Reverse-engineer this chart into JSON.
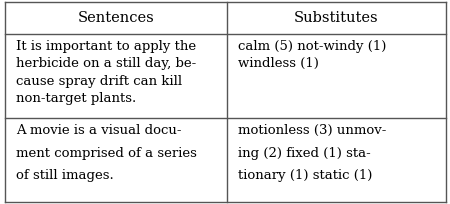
{
  "figsize": [
    4.5,
    2.04
  ],
  "dpi": 100,
  "background_color": "#ffffff",
  "border_color": "#555555",
  "header_row": [
    "Sentences",
    "Substitutes"
  ],
  "col_split": 0.505,
  "header_fontsize": 10.5,
  "body_fontsize": 9.5,
  "line_color": "#555555",
  "text_color": "#000000",
  "row1_sent_lines": [
    "It is important to apply the",
    "herbicide on a still day, be-",
    "cause spray drift can kill",
    "non-target plants."
  ],
  "row1_sub_lines": [
    "calm (5) not-windy (1)",
    "windless (1)"
  ],
  "row2_sent_lines": [
    "A movie is a visual docu-",
    "ment comprised of a series",
    "of still images."
  ],
  "row2_sub_lines": [
    "motionless (3) unmov-",
    "ing (2) fixed (1) sta-",
    "tionary (1) static (1)"
  ]
}
